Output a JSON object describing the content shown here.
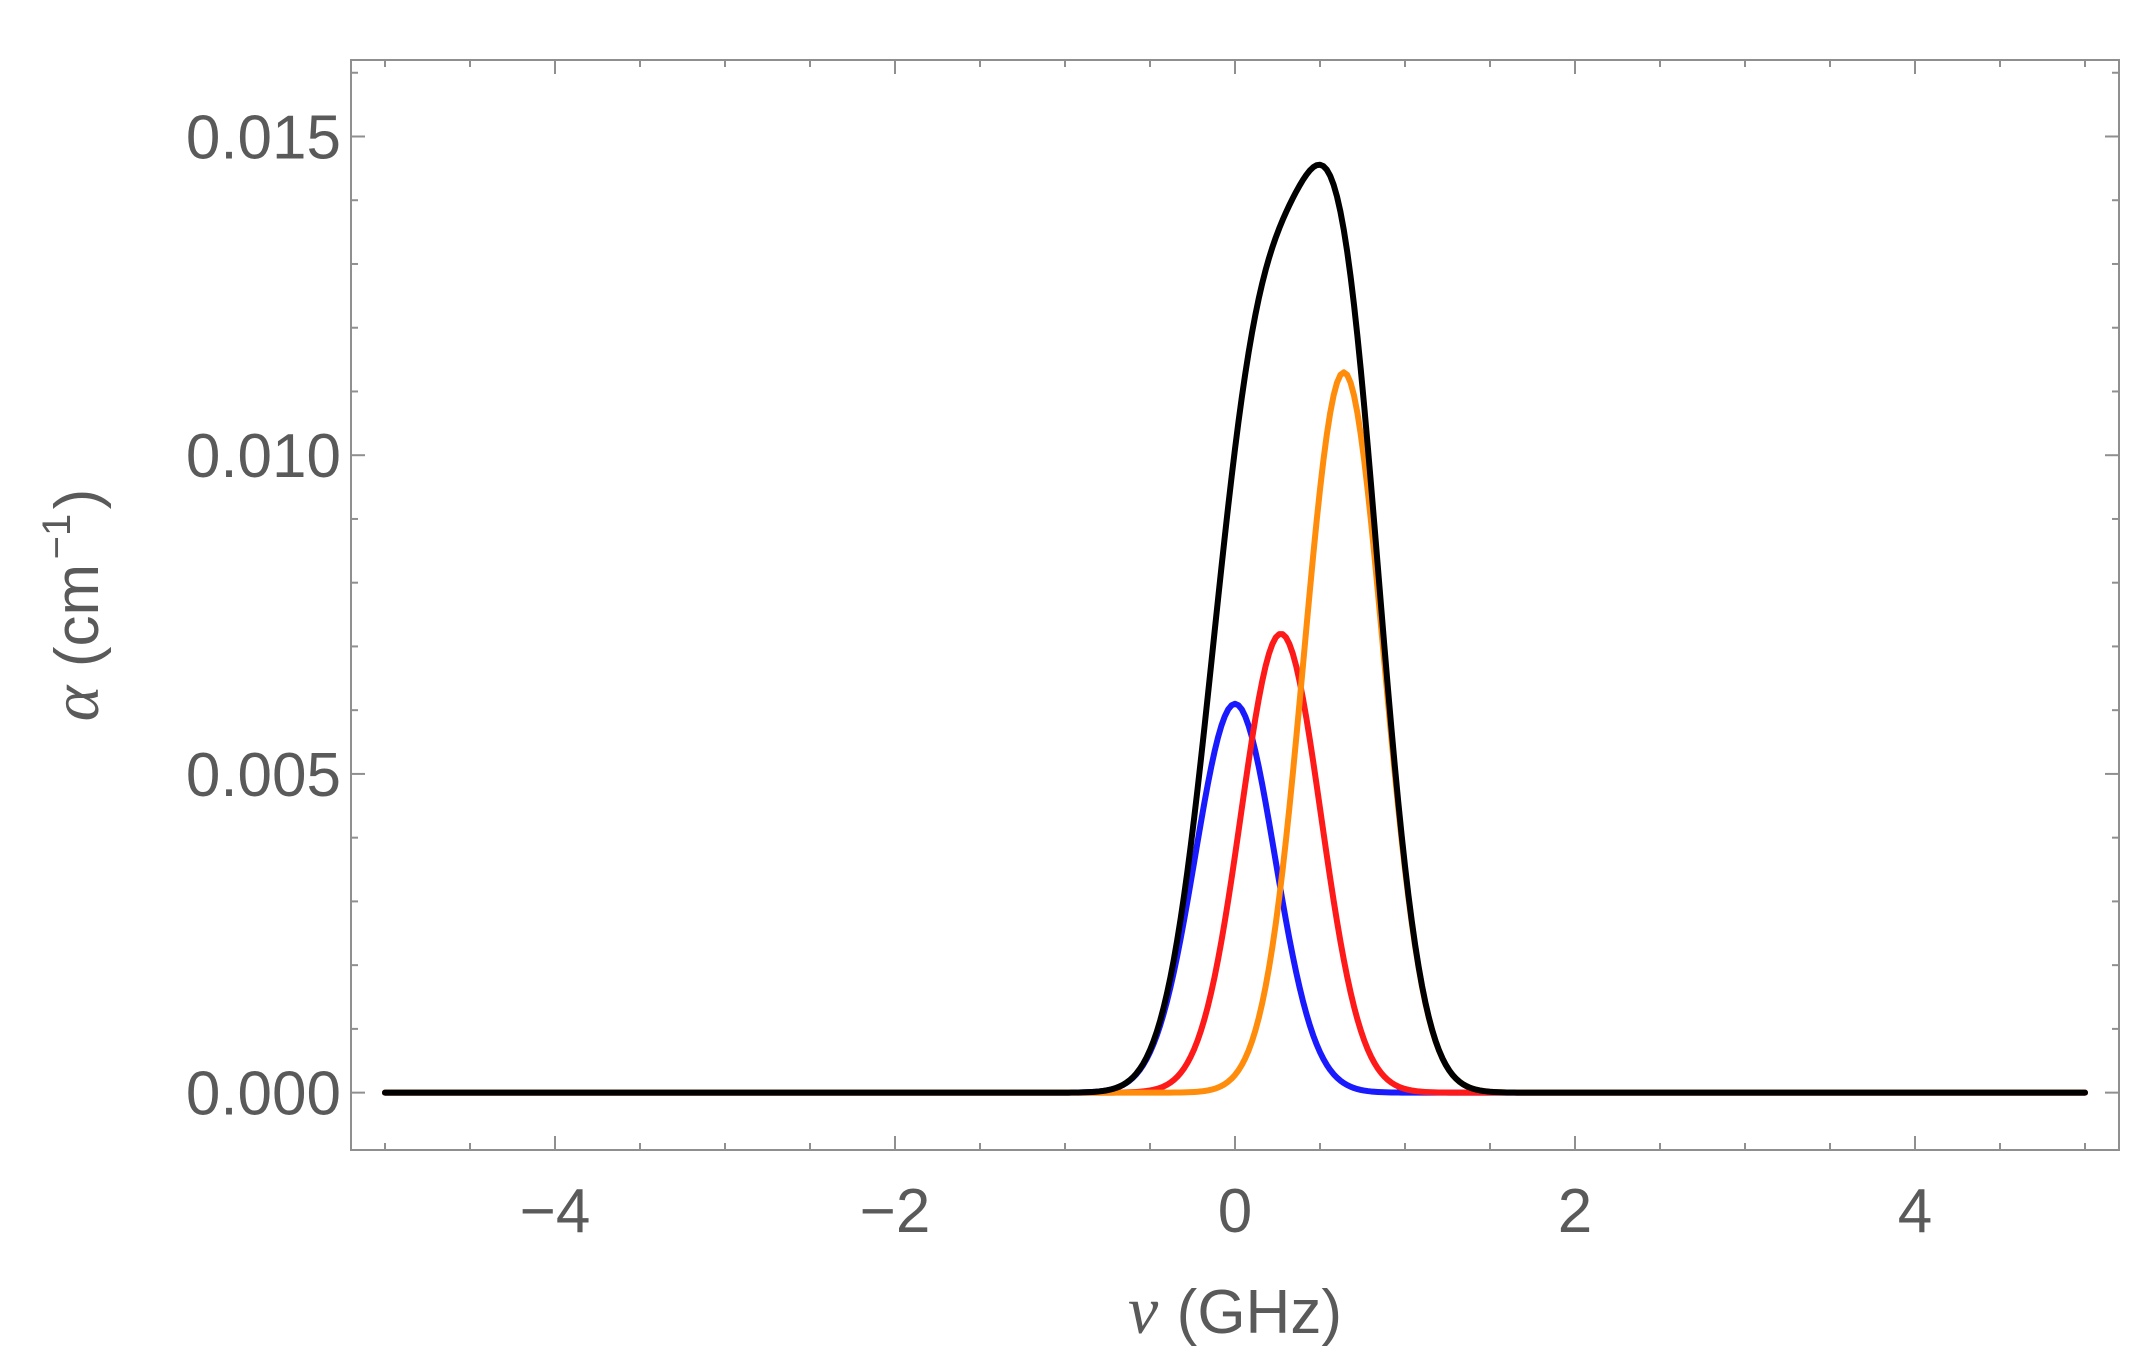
{
  "chart_data": {
    "type": "line",
    "title": "",
    "xlabel": {
      "symbol": "ν",
      "unit": "(GHz)"
    },
    "ylabel": {
      "symbol": "α",
      "unit_open": "(cm",
      "unit_sup": "−1",
      "unit_close": ")"
    },
    "xlim": [
      -5.2,
      5.2
    ],
    "ylim": [
      -0.0009,
      0.0162
    ],
    "x_ticks": [
      -4,
      -2,
      0,
      2,
      4
    ],
    "x_tick_labels": [
      "−4",
      "−2",
      "0",
      "2",
      "4"
    ],
    "y_ticks": [
      0.0,
      0.005,
      0.01,
      0.015
    ],
    "y_tick_labels": [
      "0.000",
      "0.005",
      "0.010",
      "0.015"
    ],
    "grid": false,
    "legend": "none",
    "x_range": [
      -5,
      5
    ],
    "series": [
      {
        "color": "#1a1aff",
        "components": [
          {
            "center": 0.0,
            "amplitude": 0.0061,
            "sigma": 0.235
          }
        ]
      },
      {
        "color": "#ff1a1a",
        "components": [
          {
            "center": 0.27,
            "amplitude": 0.0072,
            "sigma": 0.235
          }
        ]
      },
      {
        "color": "#ff8c0a",
        "components": [
          {
            "center": 0.64,
            "amplitude": 0.0113,
            "sigma": 0.235
          }
        ]
      },
      {
        "color": "#000000",
        "components": [
          {
            "center": 0.0,
            "amplitude": 0.0061,
            "sigma": 0.235
          },
          {
            "center": 0.27,
            "amplitude": 0.0072,
            "sigma": 0.235
          },
          {
            "center": 0.64,
            "amplitude": 0.0113,
            "sigma": 0.235
          }
        ]
      }
    ]
  }
}
